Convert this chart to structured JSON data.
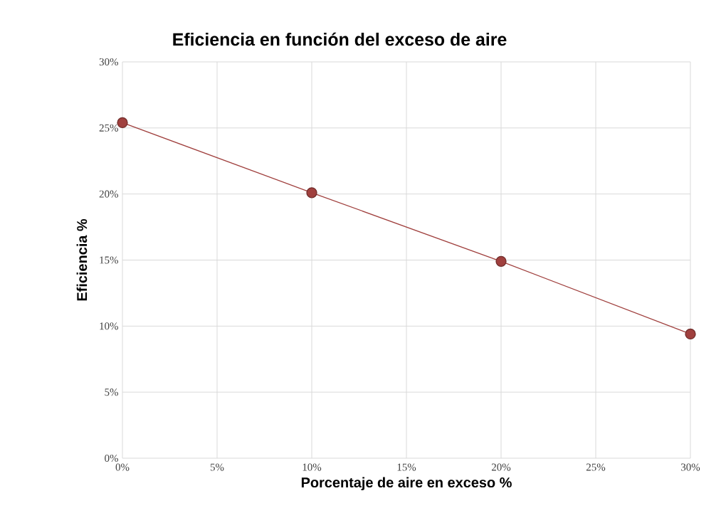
{
  "chart_data": {
    "type": "line",
    "title": "Eficiencia en función del exceso de aire",
    "xlabel": "Porcentaje de aire en exceso %",
    "ylabel": "Eficiencia %",
    "x": [
      0,
      10,
      20,
      30
    ],
    "series": [
      {
        "color": "#a0403e",
        "values": [
          25.4,
          20.1,
          14.9,
          9.4
        ]
      }
    ],
    "xlim": [
      0,
      30
    ],
    "ylim": [
      0,
      30
    ],
    "xticks": [
      {
        "value": 0,
        "label": "0%"
      },
      {
        "value": 5,
        "label": "5%"
      },
      {
        "value": 10,
        "label": "10%"
      },
      {
        "value": 15,
        "label": "15%"
      },
      {
        "value": 20,
        "label": "20%"
      },
      {
        "value": 25,
        "label": "25%"
      },
      {
        "value": 30,
        "label": "30%"
      }
    ],
    "yticks": [
      {
        "value": 0,
        "label": "0%"
      },
      {
        "value": 5,
        "label": "5%"
      },
      {
        "value": 10,
        "label": "10%"
      },
      {
        "value": 15,
        "label": "15%"
      },
      {
        "value": 20,
        "label": "20%"
      },
      {
        "value": 25,
        "label": "25%"
      },
      {
        "value": 30,
        "label": "30%"
      }
    ],
    "grid": true,
    "marker": "circle",
    "line_style": "solid"
  }
}
